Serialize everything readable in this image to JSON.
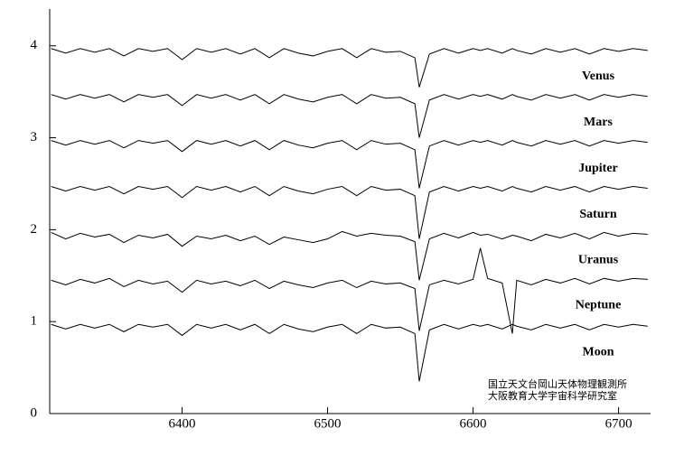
{
  "chart_data": {
    "type": "line",
    "x": [
      6310,
      6320,
      6330,
      6340,
      6350,
      6360,
      6370,
      6380,
      6390,
      6400,
      6410,
      6420,
      6430,
      6440,
      6450,
      6460,
      6470,
      6480,
      6490,
      6500,
      6510,
      6520,
      6530,
      6540,
      6550,
      6560,
      6563,
      6570,
      6580,
      6590,
      6600,
      6605,
      6610,
      6620,
      6627,
      6630,
      6640,
      6650,
      6660,
      6670,
      6680,
      6690,
      6700,
      6710,
      6720
    ],
    "series": [
      {
        "name": "Venus",
        "color": "#000000",
        "values": [
          3.97,
          3.92,
          3.97,
          3.93,
          3.97,
          3.89,
          3.97,
          3.94,
          3.97,
          3.85,
          3.97,
          3.93,
          3.97,
          3.91,
          3.97,
          3.87,
          3.97,
          3.92,
          3.89,
          3.94,
          3.97,
          3.87,
          3.97,
          3.93,
          3.94,
          3.87,
          3.55,
          3.91,
          3.97,
          3.92,
          3.97,
          3.95,
          3.97,
          3.92,
          3.97,
          3.95,
          3.91,
          3.97,
          3.93,
          3.97,
          3.91,
          3.97,
          3.94,
          3.97,
          3.95
        ]
      },
      {
        "name": "Mars",
        "color": "#000000",
        "values": [
          3.47,
          3.42,
          3.47,
          3.43,
          3.47,
          3.39,
          3.47,
          3.44,
          3.47,
          3.35,
          3.47,
          3.43,
          3.47,
          3.41,
          3.47,
          3.37,
          3.47,
          3.42,
          3.39,
          3.44,
          3.47,
          3.37,
          3.47,
          3.43,
          3.44,
          3.37,
          3.0,
          3.41,
          3.47,
          3.42,
          3.47,
          3.45,
          3.47,
          3.42,
          3.47,
          3.45,
          3.41,
          3.47,
          3.43,
          3.47,
          3.41,
          3.47,
          3.44,
          3.47,
          3.45
        ]
      },
      {
        "name": "Jupiter",
        "color": "#000000",
        "values": [
          2.97,
          2.92,
          2.97,
          2.93,
          2.97,
          2.89,
          2.97,
          2.94,
          2.97,
          2.85,
          2.97,
          2.93,
          2.97,
          2.91,
          2.97,
          2.87,
          2.97,
          2.92,
          2.89,
          2.94,
          2.97,
          2.87,
          2.97,
          2.93,
          2.94,
          2.87,
          2.45,
          2.91,
          2.97,
          2.92,
          2.97,
          2.95,
          2.97,
          2.92,
          2.97,
          2.95,
          2.91,
          2.97,
          2.93,
          2.97,
          2.91,
          2.97,
          2.94,
          2.97,
          2.95
        ]
      },
      {
        "name": "Saturn",
        "color": "#000000",
        "values": [
          2.47,
          2.42,
          2.47,
          2.43,
          2.47,
          2.39,
          2.47,
          2.44,
          2.47,
          2.35,
          2.47,
          2.43,
          2.47,
          2.41,
          2.47,
          2.37,
          2.47,
          2.42,
          2.39,
          2.44,
          2.47,
          2.37,
          2.47,
          2.43,
          2.44,
          2.37,
          1.9,
          2.41,
          2.47,
          2.42,
          2.47,
          2.45,
          2.47,
          2.42,
          2.47,
          2.45,
          2.41,
          2.47,
          2.43,
          2.47,
          2.41,
          2.47,
          2.44,
          2.47,
          2.45
        ]
      },
      {
        "name": "Uranus",
        "color": "#000000",
        "values": [
          1.97,
          1.9,
          1.96,
          1.92,
          1.95,
          1.86,
          1.94,
          1.91,
          1.95,
          1.82,
          1.93,
          1.9,
          1.94,
          1.88,
          1.93,
          1.84,
          1.92,
          1.89,
          1.86,
          1.9,
          1.98,
          1.93,
          1.96,
          1.94,
          1.93,
          1.87,
          1.45,
          1.9,
          1.96,
          1.91,
          1.97,
          1.94,
          1.95,
          1.9,
          1.94,
          1.93,
          1.88,
          1.95,
          1.91,
          1.96,
          1.9,
          1.97,
          1.93,
          1.96,
          1.95
        ]
      },
      {
        "name": "Neptune",
        "color": "#000000",
        "values": [
          1.45,
          1.4,
          1.46,
          1.42,
          1.47,
          1.38,
          1.45,
          1.41,
          1.44,
          1.32,
          1.45,
          1.41,
          1.44,
          1.39,
          1.45,
          1.36,
          1.44,
          1.4,
          1.37,
          1.42,
          1.45,
          1.37,
          1.44,
          1.41,
          1.42,
          1.36,
          0.9,
          1.4,
          1.45,
          1.41,
          1.46,
          1.8,
          1.47,
          1.42,
          0.87,
          1.45,
          1.4,
          1.46,
          1.42,
          1.47,
          1.41,
          1.47,
          1.44,
          1.47,
          1.46
        ]
      },
      {
        "name": "Moon",
        "color": "#000000",
        "values": [
          0.97,
          0.92,
          0.97,
          0.93,
          0.97,
          0.89,
          0.97,
          0.94,
          0.97,
          0.85,
          0.97,
          0.93,
          0.97,
          0.91,
          0.97,
          0.87,
          0.97,
          0.92,
          0.89,
          0.94,
          0.97,
          0.87,
          0.97,
          0.93,
          0.94,
          0.87,
          0.35,
          0.91,
          0.97,
          0.92,
          0.97,
          0.95,
          0.97,
          0.92,
          0.97,
          0.95,
          0.91,
          0.97,
          0.93,
          0.97,
          0.91,
          0.97,
          0.94,
          0.97,
          0.95
        ]
      }
    ],
    "xlim": [
      6309,
      6722
    ],
    "xticks": [
      6400,
      6500,
      6600,
      6700
    ],
    "ylim": [
      0,
      4.4
    ],
    "yticks": [
      0,
      1,
      2,
      3,
      4
    ],
    "annotations": [
      "国立天文台岡山天体物理観測所",
      "大阪教育大学宇宙科学研究室"
    ]
  }
}
